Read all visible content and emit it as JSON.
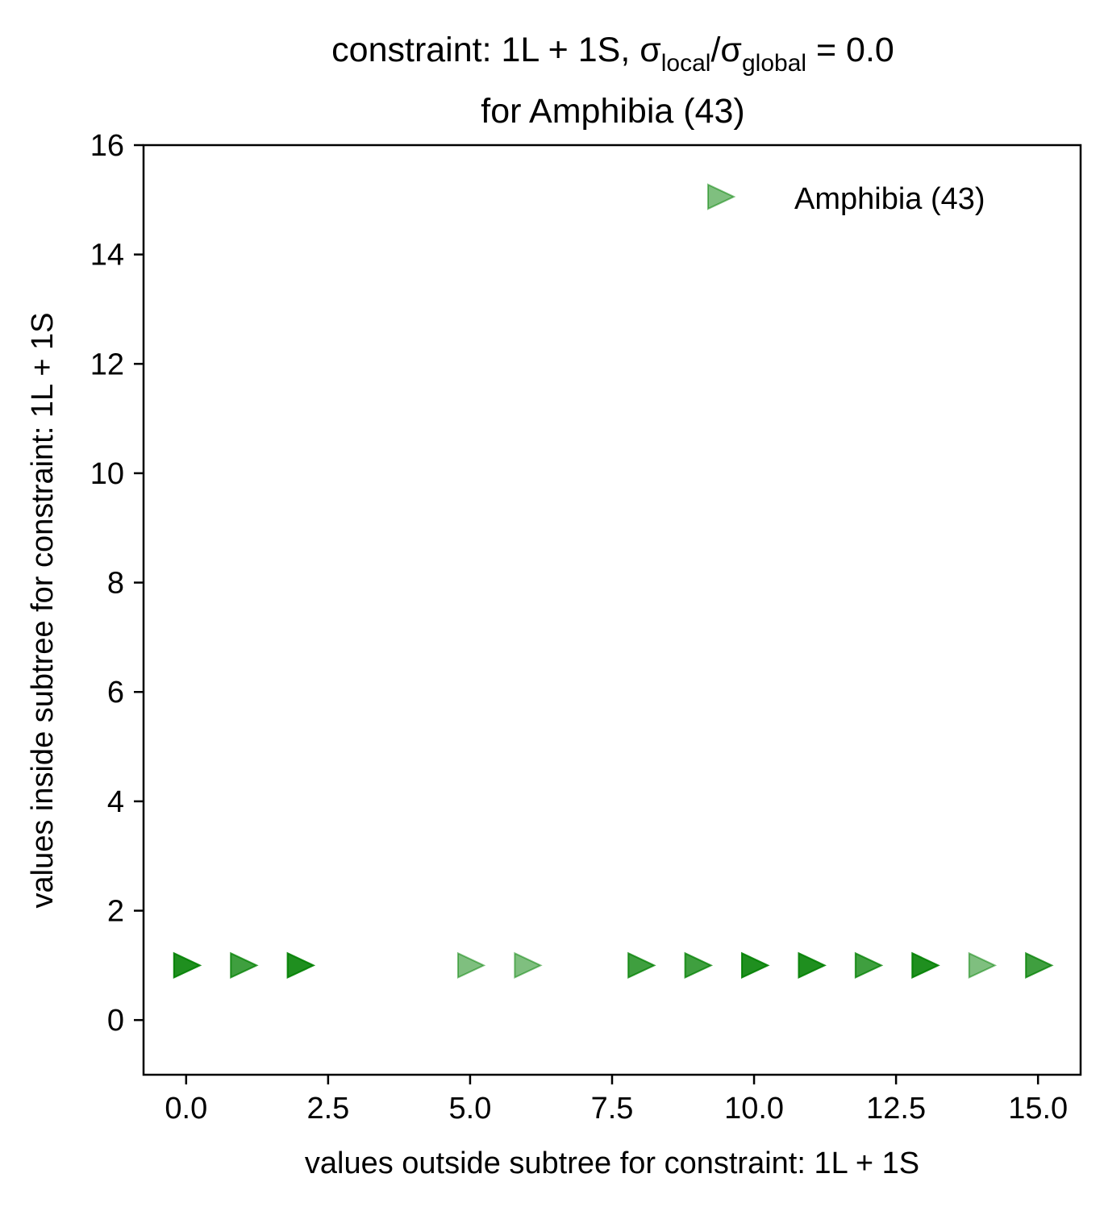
{
  "chart_data": {
    "type": "scatter",
    "title": {
      "line1_main": "constraint: 1L + 1S, σ",
      "line1_sub1": "local",
      "line1_mid": "/σ",
      "line1_sub2": "global",
      "line1_tail": " =  0.0",
      "line2": "for Amphibia (43)"
    },
    "xlabel": "values outside subtree for constraint: 1L + 1S",
    "ylabel": "values inside subtree for constraint: 1L + 1S",
    "xlim": [
      -0.75,
      15.75
    ],
    "ylim": [
      -1,
      16
    ],
    "xticks": [
      0.0,
      2.5,
      5.0,
      7.5,
      10.0,
      12.5,
      15.0
    ],
    "xtick_labels": [
      "0.0",
      "2.5",
      "5.0",
      "7.5",
      "10.0",
      "12.5",
      "15.0"
    ],
    "yticks": [
      0,
      2,
      4,
      6,
      8,
      10,
      12,
      14,
      16
    ],
    "ytick_labels": [
      "0",
      "2",
      "4",
      "6",
      "8",
      "10",
      "12",
      "14",
      "16"
    ],
    "grid": false,
    "legend_position": "top-right",
    "marker": "triangle-right",
    "series": [
      {
        "name": "Amphibia (43)",
        "color": "#008000",
        "points": [
          {
            "x": 0,
            "y": 1,
            "count": 3
          },
          {
            "x": 1,
            "y": 1,
            "count": 2
          },
          {
            "x": 2,
            "y": 1,
            "count": 3
          },
          {
            "x": 5,
            "y": 1,
            "count": 1
          },
          {
            "x": 6,
            "y": 1,
            "count": 1
          },
          {
            "x": 8,
            "y": 1,
            "count": 2
          },
          {
            "x": 9,
            "y": 1,
            "count": 2
          },
          {
            "x": 10,
            "y": 1,
            "count": 3
          },
          {
            "x": 11,
            "y": 1,
            "count": 3
          },
          {
            "x": 12,
            "y": 1,
            "count": 2
          },
          {
            "x": 13,
            "y": 1,
            "count": 3
          },
          {
            "x": 14,
            "y": 1,
            "count": 1
          },
          {
            "x": 15,
            "y": 1,
            "count": 2
          }
        ]
      }
    ]
  }
}
